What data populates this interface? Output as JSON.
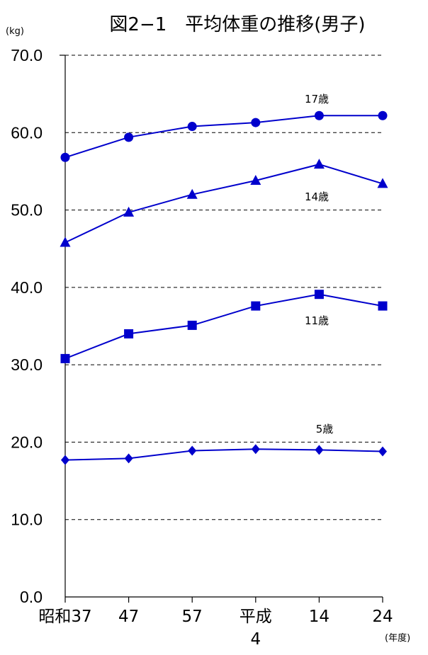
{
  "chart_data": {
    "type": "line",
    "title": "図2−1　平均体重の推移(男子)",
    "ylabel": "(kg)",
    "xlabel": "(年度)",
    "ylim": [
      0,
      70
    ],
    "yticks": [
      "0.0",
      "10.0",
      "20.0",
      "30.0",
      "40.0",
      "50.0",
      "60.0",
      "70.0"
    ],
    "categories": [
      "昭和37",
      "47",
      "57",
      "平成4",
      "14",
      "24"
    ],
    "category_lines": [
      [
        "昭和37"
      ],
      [
        "47"
      ],
      [
        "57"
      ],
      [
        "平成",
        "4"
      ],
      [
        "14"
      ],
      [
        "24"
      ]
    ],
    "grid": "horizontal dashed",
    "series": [
      {
        "name": "17歳",
        "marker": "circle",
        "values": [
          56.8,
          59.4,
          60.8,
          61.3,
          62.2,
          62.2
        ]
      },
      {
        "name": "14歳",
        "marker": "triangle",
        "values": [
          45.8,
          49.7,
          52.0,
          53.8,
          55.9,
          53.4
        ]
      },
      {
        "name": "11歳",
        "marker": "square",
        "values": [
          30.8,
          34.0,
          35.1,
          37.6,
          39.1,
          37.6
        ]
      },
      {
        "name": "5歳",
        "marker": "diamond",
        "values": [
          17.7,
          17.9,
          18.9,
          19.1,
          19.0,
          18.8
        ]
      }
    ],
    "colors": {
      "series": "#0000CC",
      "axis": "#000000",
      "grid": "#000000"
    }
  }
}
